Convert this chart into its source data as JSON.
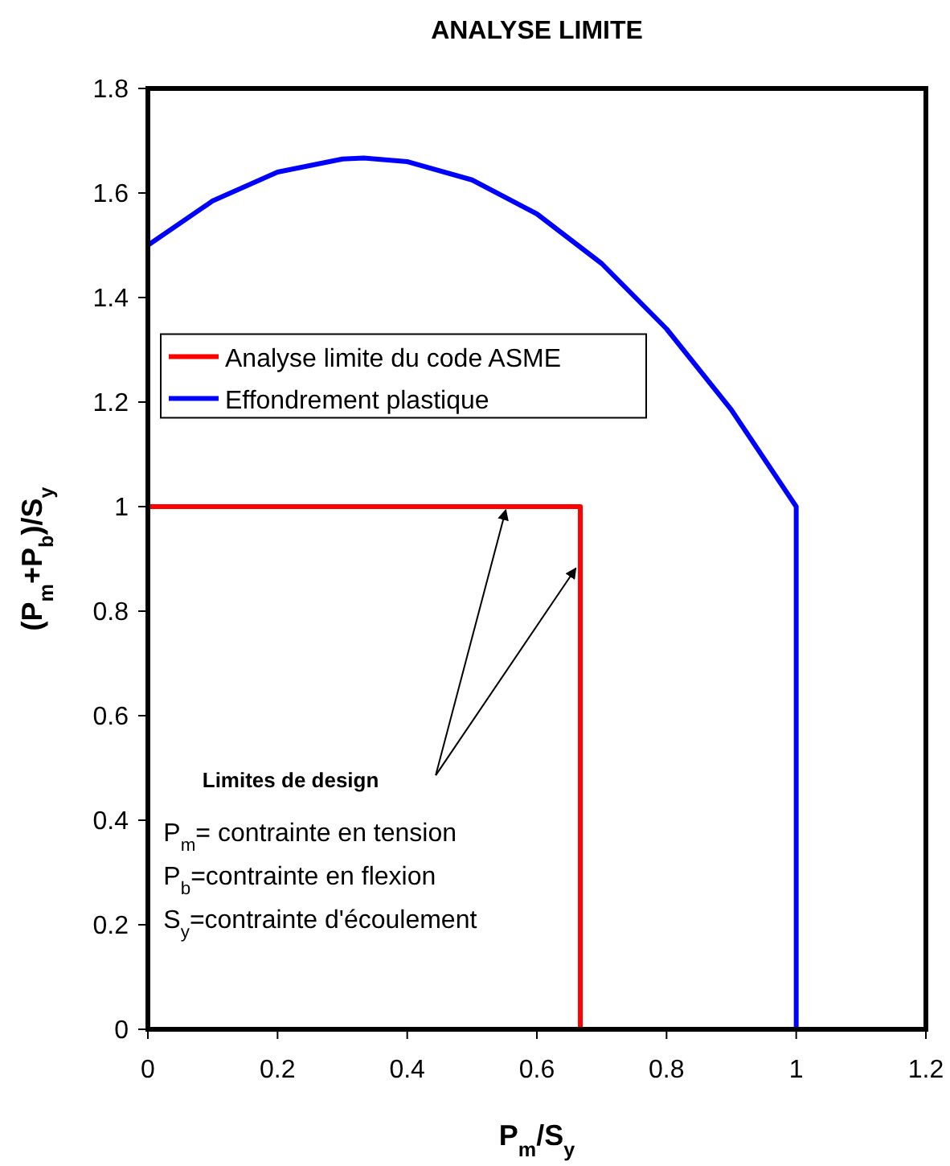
{
  "chart_data": {
    "type": "line",
    "title": "ANALYSE LIMITE",
    "xlabel": "P$_{m}$/S$_{y}$",
    "ylabel": "(P$_{m}$+P$_{b}$)/S$_{y}$",
    "series": [
      {
        "name": "Analyse limite du code ASME",
        "color": "#ff0000",
        "x": [
          0,
          0.667,
          0.667
        ],
        "values": [
          1,
          1,
          0
        ]
      },
      {
        "name": "Effondrement plastique",
        "color": "#0000ff",
        "x": [
          0,
          0.1,
          0.2,
          0.3,
          0.333,
          0.4,
          0.5,
          0.6,
          0.7,
          0.8,
          0.9,
          1,
          1
        ],
        "values": [
          1.5,
          1.585,
          1.64,
          1.665,
          1.667,
          1.66,
          1.625,
          1.56,
          1.465,
          1.34,
          1.185,
          1,
          0
        ]
      }
    ],
    "xlim": [
      0,
      1.2
    ],
    "xticks": [
      0,
      0.2,
      0.4,
      0.6,
      0.8,
      1,
      1.2
    ],
    "ylim": [
      0,
      1.8
    ],
    "yticks": [
      0,
      0.2,
      0.4,
      0.6,
      0.8,
      1,
      1.2,
      1.4,
      1.6,
      1.8
    ],
    "grid": false,
    "legend": "left",
    "marker": "none",
    "line_style": "solid",
    "annotations": [
      "Limites de design",
      "P$_{m}$= contrainte en tension",
      "P$_{b}$=contrainte en flexion",
      "S$_{y}$=contrainte d'écoulement"
    ]
  }
}
